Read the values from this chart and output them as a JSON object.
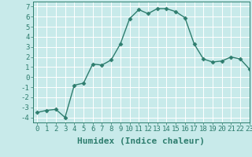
{
  "x": [
    0,
    1,
    2,
    3,
    4,
    5,
    6,
    7,
    8,
    9,
    10,
    11,
    12,
    13,
    14,
    15,
    16,
    17,
    18,
    19,
    20,
    21,
    22,
    23
  ],
  "y": [
    -3.5,
    -3.3,
    -3.2,
    -4.0,
    -0.8,
    -0.6,
    1.3,
    1.2,
    1.7,
    3.3,
    5.8,
    6.7,
    6.3,
    6.8,
    6.8,
    6.5,
    5.9,
    3.3,
    1.8,
    1.5,
    1.6,
    2.0,
    1.8,
    0.8
  ],
  "line_color": "#2e7d6e",
  "marker": "D",
  "marker_size": 2.5,
  "line_width": 1.0,
  "bg_color": "#c8eaea",
  "grid_color": "#ffffff",
  "xlabel": "Humidex (Indice chaleur)",
  "ylim": [
    -4.5,
    7.5
  ],
  "xlim": [
    -0.5,
    23
  ],
  "yticks": [
    -4,
    -3,
    -2,
    -1,
    0,
    1,
    2,
    3,
    4,
    5,
    6,
    7
  ],
  "xticks": [
    0,
    1,
    2,
    3,
    4,
    5,
    6,
    7,
    8,
    9,
    10,
    11,
    12,
    13,
    14,
    15,
    16,
    17,
    18,
    19,
    20,
    21,
    22,
    23
  ],
  "tick_fontsize": 6.5,
  "xlabel_fontsize": 8
}
